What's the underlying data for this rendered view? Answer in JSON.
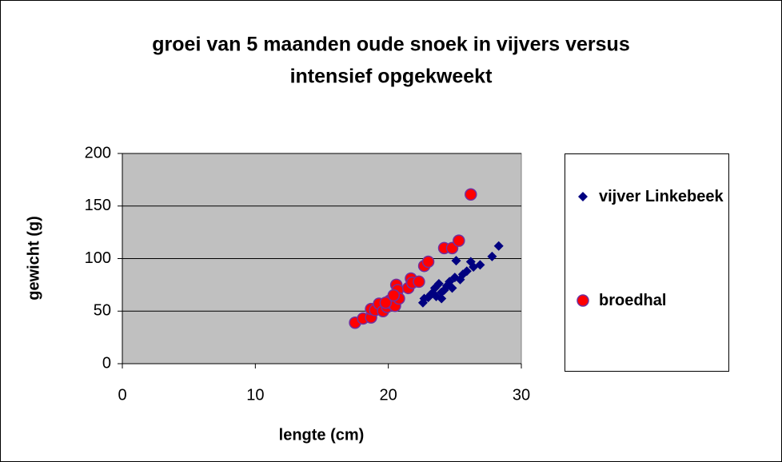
{
  "chart_data": {
    "type": "scatter",
    "title": [
      "groei van 5 maanden oude snoek in vijvers versus",
      "intensief opgekweekt"
    ],
    "xlabel": "lengte (cm)",
    "ylabel": "gewicht (g)",
    "xlim": [
      0,
      30
    ],
    "xticks": [
      0,
      10,
      20,
      30
    ],
    "ylim": [
      0,
      200
    ],
    "yticks": [
      0,
      50,
      100,
      150,
      200
    ],
    "grid": true,
    "legend": "right",
    "series": [
      {
        "name": "vijver Linkebeek",
        "color": "#000080",
        "marker": "diamond",
        "x": [
          22.6,
          22.7,
          23.0,
          23.2,
          23.5,
          23.6,
          23.8,
          24.0,
          24.2,
          24.4,
          24.6,
          24.8,
          25.0,
          25.1,
          25.4,
          25.6,
          25.9,
          26.2,
          26.4,
          26.9,
          27.8,
          28.3,
          24.0,
          23.3
        ],
        "values": [
          58,
          62,
          63,
          66,
          72,
          64,
          76,
          62,
          70,
          74,
          78,
          72,
          82,
          98,
          80,
          85,
          88,
          97,
          92,
          94,
          102,
          112,
          68,
          67
        ]
      },
      {
        "name": "broedhal",
        "color": "#ff0000",
        "marker": "circle",
        "x": [
          17.5,
          18.1,
          18.7,
          18.7,
          19.0,
          19.3,
          19.6,
          19.9,
          20.1,
          20.3,
          20.5,
          20.6,
          20.7,
          20.8,
          21.5,
          21.7,
          21.8,
          22.3,
          22.7,
          23.0,
          24.2,
          24.8,
          25.3,
          26.2,
          19.8,
          20.4
        ],
        "values": [
          39,
          43,
          44,
          52,
          51,
          57,
          50,
          54,
          60,
          57,
          55,
          75,
          70,
          62,
          72,
          81,
          77,
          78,
          93,
          97,
          110,
          110,
          117,
          161,
          58,
          65
        ]
      }
    ]
  }
}
